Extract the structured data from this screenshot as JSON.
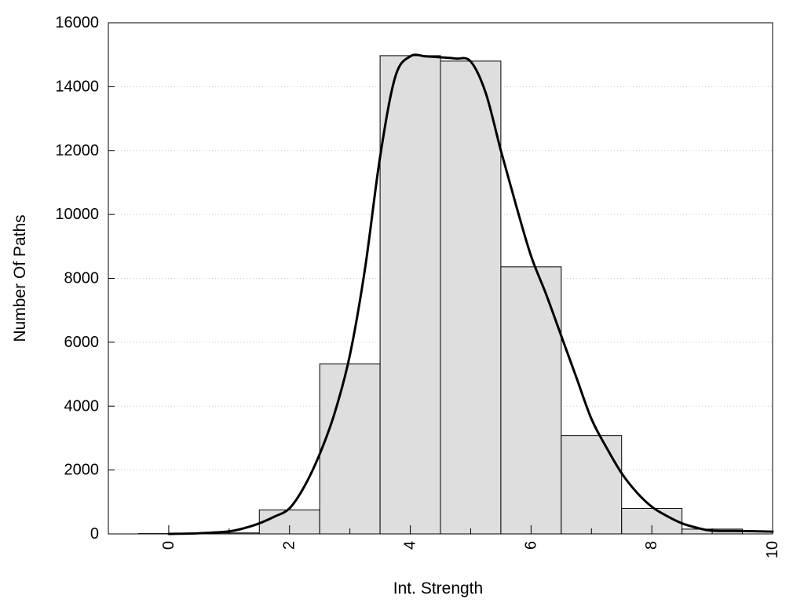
{
  "chart_data": {
    "type": "bar",
    "title": "",
    "xlabel": "Int. Strength",
    "ylabel": "Number Of Paths",
    "xlim": [
      -1,
      10
    ],
    "ylim": [
      0,
      16000
    ],
    "x_ticks": [
      0,
      2,
      4,
      6,
      8,
      10
    ],
    "y_ticks": [
      0,
      2000,
      4000,
      6000,
      8000,
      10000,
      12000,
      14000,
      16000
    ],
    "grid": "horizontal dotted",
    "legend": "none",
    "bars": {
      "x": [
        0,
        1,
        2,
        3,
        4,
        5,
        6,
        7,
        8,
        9
      ],
      "values": [
        10,
        30,
        750,
        5320,
        14970,
        14800,
        8360,
        3080,
        800,
        150
      ],
      "width": 1,
      "color": "#dedede",
      "edge_color": "#000000"
    },
    "curve": {
      "x": [
        0,
        0.5,
        1,
        1.25,
        1.5,
        1.75,
        2,
        2.25,
        2.5,
        2.75,
        3,
        3.25,
        3.5,
        3.75,
        4,
        4.25,
        4.5,
        4.75,
        5,
        5.25,
        5.5,
        5.75,
        6,
        6.25,
        6.5,
        6.75,
        7,
        7.25,
        7.5,
        7.75,
        8,
        8.25,
        8.5,
        8.75,
        9,
        9.5,
        10
      ],
      "y": [
        0,
        20,
        80,
        180,
        330,
        540,
        800,
        1500,
        2500,
        3800,
        5600,
        8300,
        11800,
        14300,
        14950,
        14950,
        14920,
        14880,
        14790,
        13800,
        12000,
        10300,
        8700,
        7500,
        6200,
        4900,
        3600,
        2700,
        1900,
        1300,
        850,
        560,
        330,
        190,
        100,
        90,
        70
      ],
      "color": "#000000"
    }
  }
}
